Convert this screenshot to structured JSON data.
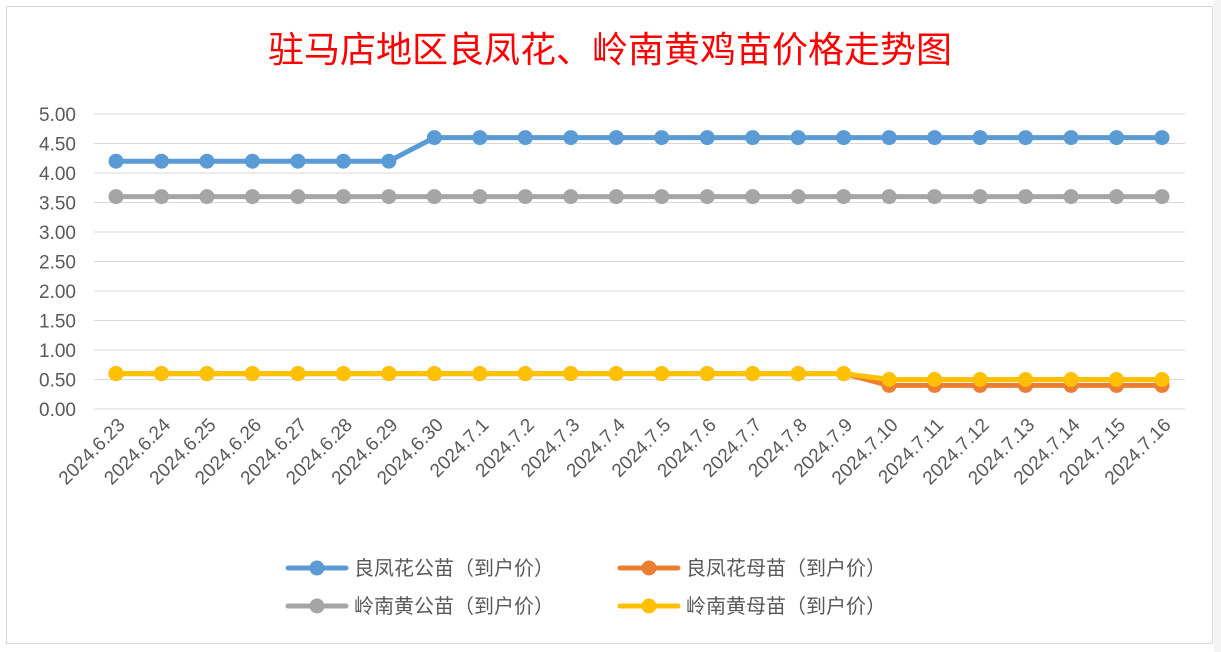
{
  "chart_data": {
    "type": "line",
    "title": "驻马店地区良凤花、岭南黄鸡苗价格走势图",
    "xlabel": "",
    "ylabel": "",
    "ylim": [
      0,
      5
    ],
    "yticks": [
      "0.00",
      "0.50",
      "1.00",
      "1.50",
      "2.00",
      "2.50",
      "3.00",
      "3.50",
      "4.00",
      "4.50",
      "5.00"
    ],
    "grid": true,
    "legend_position": "bottom",
    "categories": [
      "2024.6.23",
      "2024.6.24",
      "2024.6.25",
      "2024.6.26",
      "2024.6.27",
      "2024.6.28",
      "2024.6.29",
      "2024.6.30",
      "2024.7.1",
      "2024.7.2",
      "2024.7.3",
      "2024.7.4",
      "2024.7.5",
      "2024.7.6",
      "2024.7.7",
      "2024.7.8",
      "2024.7.9",
      "2024.7.10",
      "2024.7.11",
      "2024.7.12",
      "2024.7.13",
      "2024.7.14",
      "2024.7.15",
      "2024.7.16"
    ],
    "series": [
      {
        "name": "良凤花公苗（到户价）",
        "color": "#5b9bd5",
        "values": [
          4.2,
          4.2,
          4.2,
          4.2,
          4.2,
          4.2,
          4.2,
          4.6,
          4.6,
          4.6,
          4.6,
          4.6,
          4.6,
          4.6,
          4.6,
          4.6,
          4.6,
          4.6,
          4.6,
          4.6,
          4.6,
          4.6,
          4.6,
          4.6
        ]
      },
      {
        "name": "良凤花母苗（到户价）",
        "color": "#ed7d31",
        "values": [
          0.6,
          0.6,
          0.6,
          0.6,
          0.6,
          0.6,
          0.6,
          0.6,
          0.6,
          0.6,
          0.6,
          0.6,
          0.6,
          0.6,
          0.6,
          0.6,
          0.6,
          0.4,
          0.4,
          0.4,
          0.4,
          0.4,
          0.4,
          0.4
        ]
      },
      {
        "name": "岭南黄公苗（到户价）",
        "color": "#a5a5a5",
        "values": [
          3.6,
          3.6,
          3.6,
          3.6,
          3.6,
          3.6,
          3.6,
          3.6,
          3.6,
          3.6,
          3.6,
          3.6,
          3.6,
          3.6,
          3.6,
          3.6,
          3.6,
          3.6,
          3.6,
          3.6,
          3.6,
          3.6,
          3.6,
          3.6
        ]
      },
      {
        "name": "岭南黄母苗（到户价）",
        "color": "#ffc000",
        "values": [
          0.6,
          0.6,
          0.6,
          0.6,
          0.6,
          0.6,
          0.6,
          0.6,
          0.6,
          0.6,
          0.6,
          0.6,
          0.6,
          0.6,
          0.6,
          0.6,
          0.6,
          0.5,
          0.5,
          0.5,
          0.5,
          0.5,
          0.5,
          0.5
        ]
      }
    ],
    "draw_order": [
      0,
      2,
      1,
      3
    ]
  }
}
